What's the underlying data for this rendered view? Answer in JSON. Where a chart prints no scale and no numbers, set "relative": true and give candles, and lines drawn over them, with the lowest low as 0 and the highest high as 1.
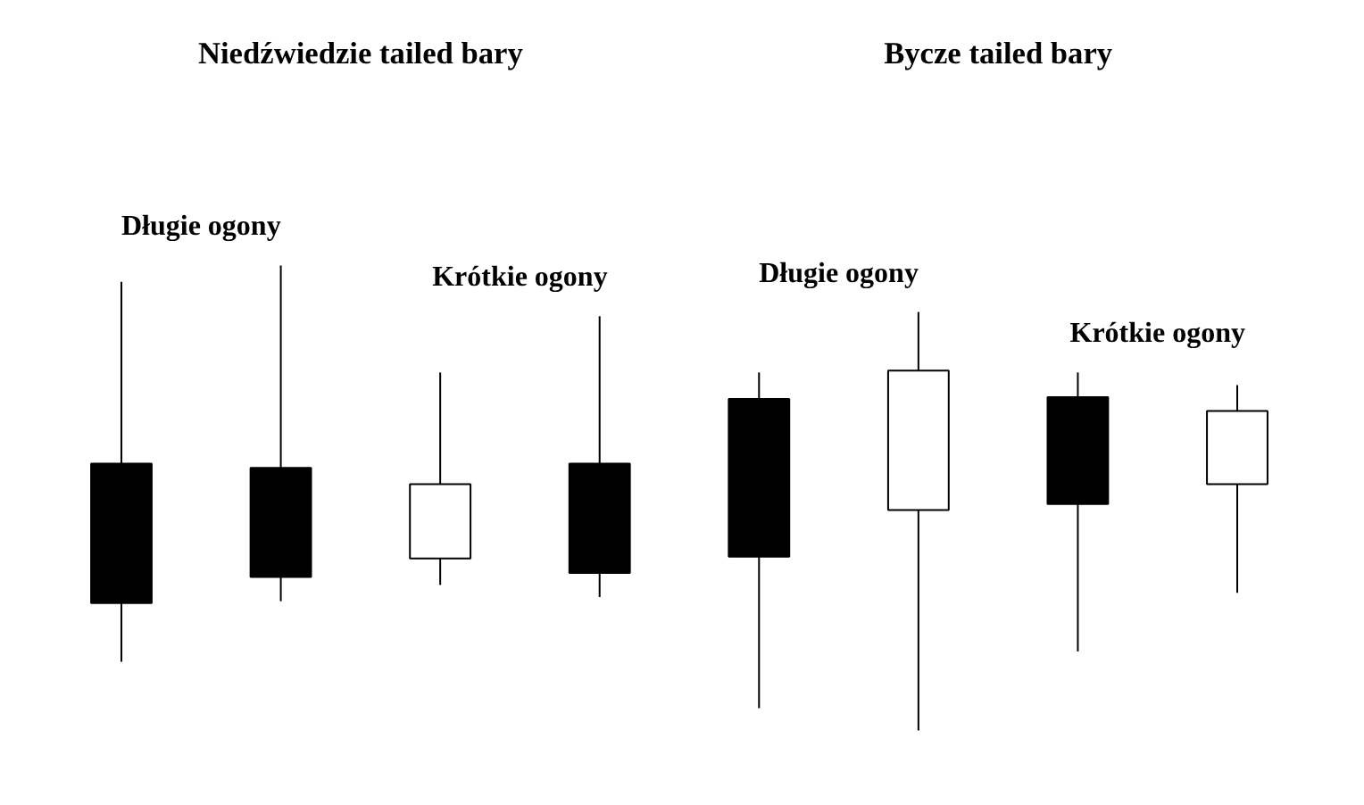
{
  "chart_data": {
    "type": "candlestick",
    "relative": true,
    "categories": [
      null,
      null,
      null,
      null,
      null,
      null,
      null,
      null
    ],
    "ohlc": [
      [
        0.574,
        0.965,
        0.148,
        0.274
      ],
      [
        0.565,
        1,
        0.278,
        0.33
      ],
      [
        0.37,
        0.77,
        0.313,
        0.53
      ],
      [
        0.574,
        0.891,
        0.287,
        0.339
      ],
      [
        0.713,
        0.77,
        0.048,
        0.374
      ],
      [
        0.474,
        0.9,
        0,
        0.774
      ],
      [
        0.717,
        0.77,
        0.17,
        0.487
      ],
      [
        0.53,
        0.743,
        0.296,
        0.687
      ]
    ],
    "colors": [
      "#000000",
      "#000000",
      "#ffffff",
      "#000000",
      "#000000",
      "#ffffff",
      "#000000",
      "#ffffff"
    ],
    "annotations": [
      "Niedźwiedzie tailed bary",
      "Bycze tailed bary",
      "Długie ogony",
      "Krótkie ogony",
      "Długie ogony",
      "Krótkie ogony"
    ]
  }
}
